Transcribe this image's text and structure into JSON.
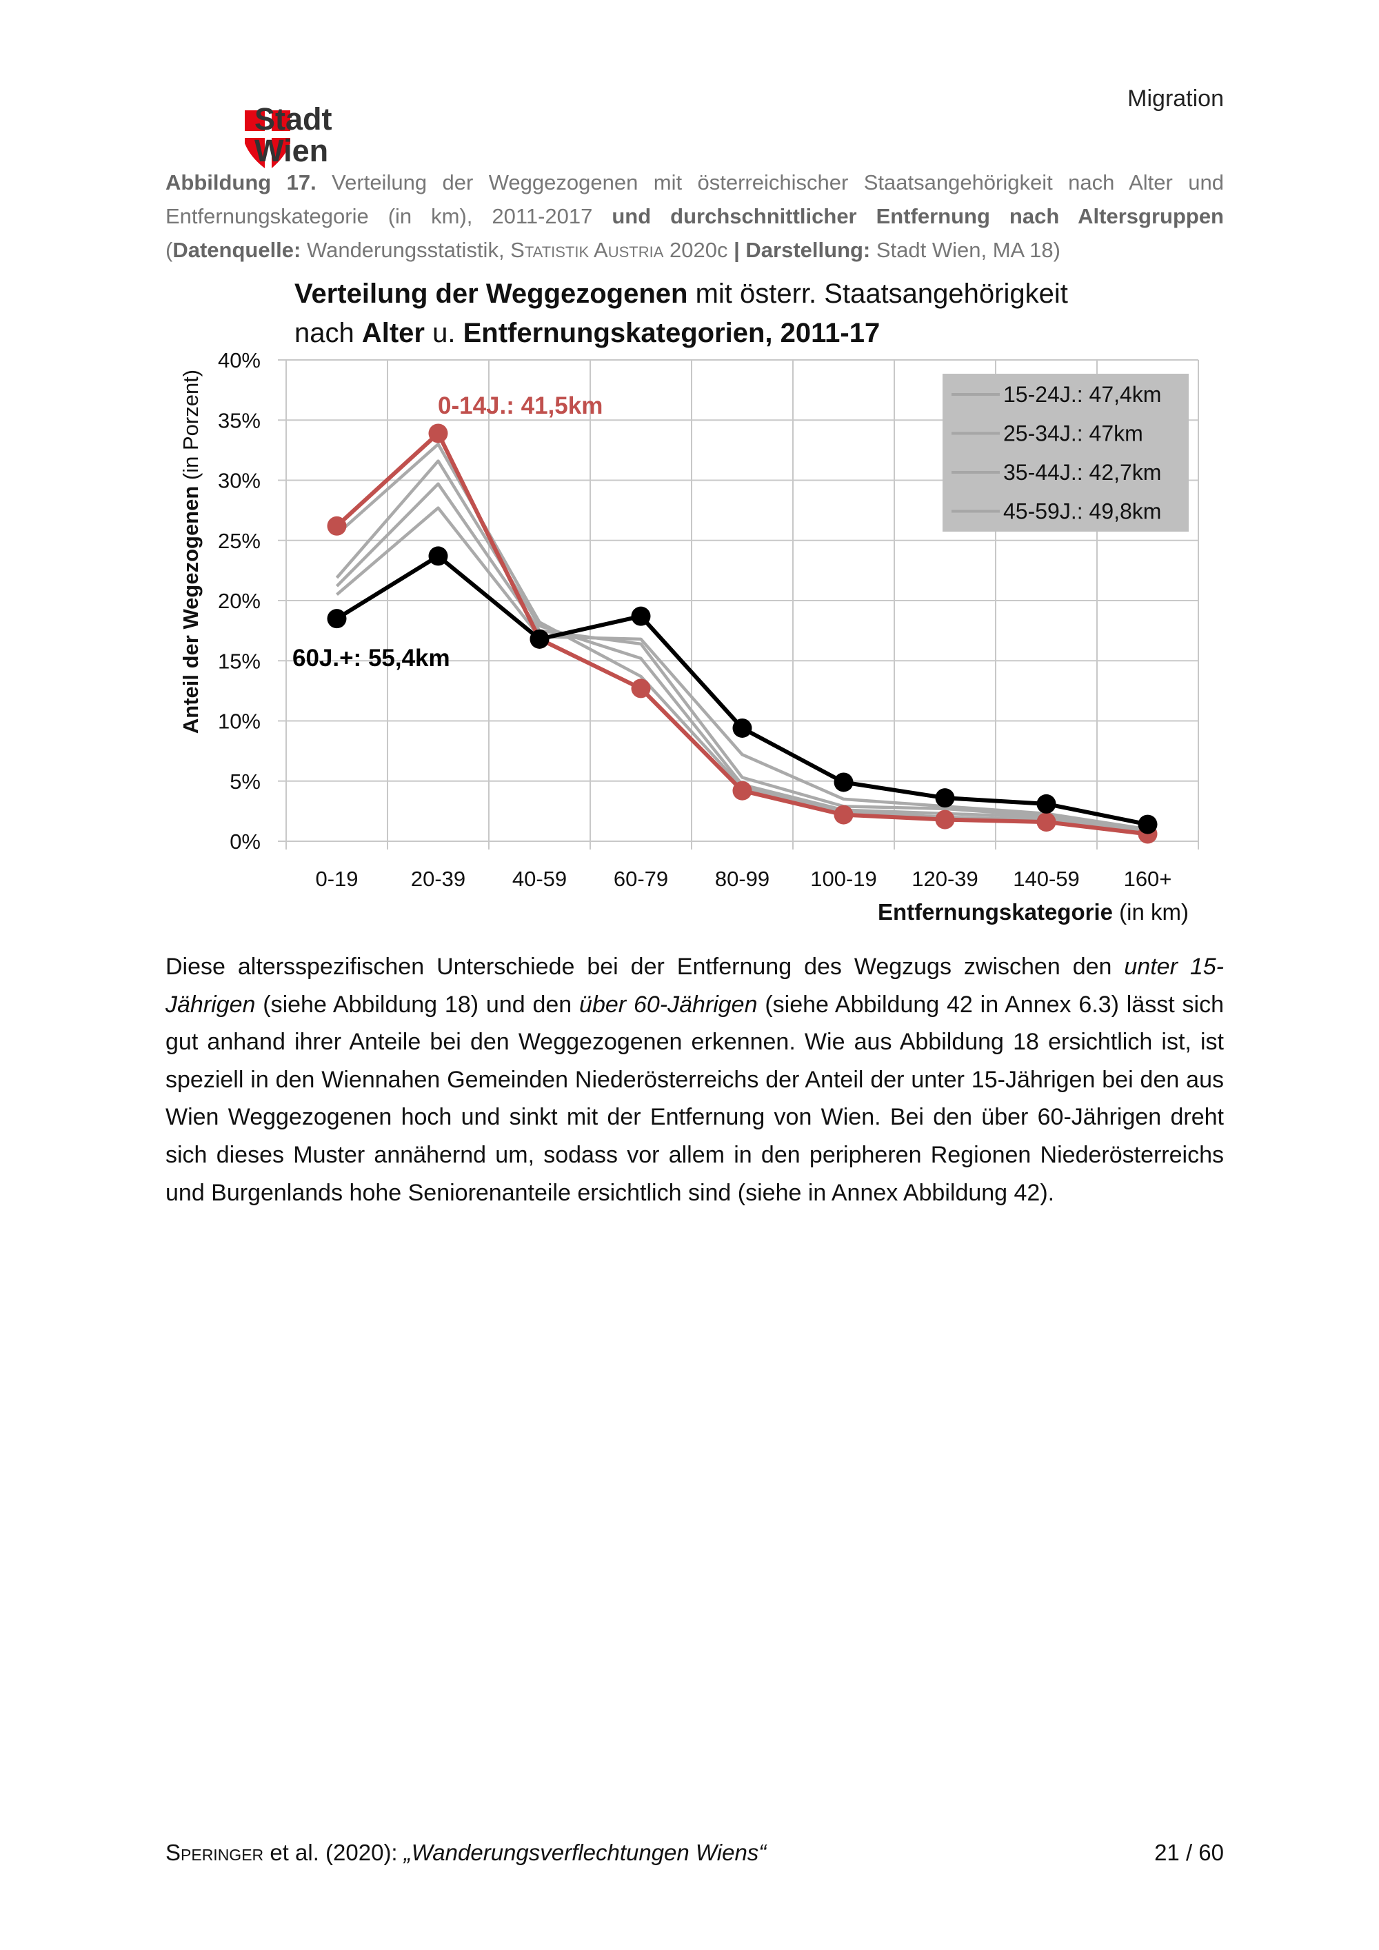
{
  "header": {
    "running_head": "Migration",
    "logo_text": [
      "Stadt",
      "Wien"
    ],
    "logo_color": "#e30613"
  },
  "caption": {
    "label": "Abbildung 17.",
    "text1": " Verteilung der Weggezogenen mit österreichischer Staatsangehörigkeit nach Alter und Entfernungskategorie (in km), 2011-2017 ",
    "bold1": "und durchschnittlicher Entfernung nach Altersgruppen",
    "open": " (",
    "source_label": "Datenquelle:",
    "source_text": " Wanderungsstatistik, ",
    "source_org": "Statistik Austria",
    "source_year": " 2020c ",
    "sep": "| ",
    "design_label": "Darstellung:",
    "design_text": " Stadt Wien, MA 18)"
  },
  "chart_data": {
    "type": "line",
    "title_parts": [
      {
        "text": "Verteilung der Weggezogenen",
        "bold": true
      },
      {
        "text": " mit österr. Staatsangehörigkeit",
        "bold": false
      },
      {
        "text": "nach ",
        "bold": false,
        "newline": true
      },
      {
        "text": "Alter",
        "bold": true
      },
      {
        "text": " u. ",
        "bold": false
      },
      {
        "text": "Entfernungskategorien, 2011-17",
        "bold": true
      }
    ],
    "xlabel_bold": "Entfernungskategorie",
    "xlabel_rest": " (in km)",
    "ylabel_bold": "Anteil der Wegezogenen",
    "ylabel_rest": " (in Porzent)",
    "categories": [
      "0-19",
      "20-39",
      "40-59",
      "60-79",
      "80-99",
      "100-19",
      "120-39",
      "140-59",
      "160+"
    ],
    "ylim": [
      0,
      40
    ],
    "yticks": [
      "0%",
      "5%",
      "10%",
      "15%",
      "20%",
      "25%",
      "30%",
      "35%",
      "40%"
    ],
    "grid": true,
    "legend_placement": "top-right",
    "series": [
      {
        "name": "15-24J.: 47,4km",
        "color": "#aaaaaa",
        "markers": false,
        "in_legend": true,
        "values": [
          21.9,
          31.6,
          17.9,
          15.2,
          4.7,
          2.6,
          2.3,
          2.0,
          0.9
        ]
      },
      {
        "name": "25-34J.: 47km",
        "color": "#aaaaaa",
        "markers": false,
        "in_legend": true,
        "values": [
          21.2,
          29.7,
          17.5,
          16.4,
          5.3,
          2.9,
          2.7,
          2.1,
          1.0
        ]
      },
      {
        "name": "35-44J.: 42,7km",
        "color": "#aaaaaa",
        "markers": false,
        "in_legend": true,
        "values": [
          25.5,
          33.0,
          18.2,
          13.7,
          4.5,
          2.5,
          2.0,
          1.8,
          0.8
        ]
      },
      {
        "name": "45-59J.: 49,8km",
        "color": "#aaaaaa",
        "markers": false,
        "in_legend": true,
        "values": [
          20.5,
          27.7,
          17.0,
          16.8,
          7.2,
          3.5,
          2.9,
          2.3,
          1.0
        ]
      },
      {
        "name": "0-14J.: 41,5km",
        "color": "#c0504d",
        "markers": true,
        "in_legend": false,
        "values": [
          26.2,
          33.9,
          16.8,
          12.7,
          4.2,
          2.2,
          1.8,
          1.6,
          0.6
        ]
      },
      {
        "name": "60J.+: 55,4km",
        "color": "#000000",
        "markers": true,
        "in_legend": false,
        "values": [
          18.5,
          23.7,
          16.8,
          18.7,
          9.4,
          4.9,
          3.6,
          3.1,
          1.4
        ]
      }
    ],
    "legend_bg": "#bfbfbf"
  },
  "body": {
    "segments": [
      {
        "t": "Diese altersspezifischen Unterschiede bei der Entfernung des Wegzugs zwischen den "
      },
      {
        "t": "unter 15-Jährigen",
        "i": true
      },
      {
        "t": " (siehe Abbildung 18) und den "
      },
      {
        "t": "über 60-Jährigen",
        "i": true
      },
      {
        "t": " (siehe Abbildung 42 in Annex 6.3) lässt sich gut anhand ihrer Anteile bei den Weggezogenen erkennen. Wie aus Abbildung 18 ersichtlich ist, ist speziell in den Wiennahen Gemeinden Niederösterreichs der Anteil der unter 15-Jährigen bei den aus Wien Weggezogenen hoch und sinkt mit der Entfernung von Wien. Bei den über 60-Jährigen dreht sich dieses Muster annähernd um, sodass vor allem in den peripheren Regionen Niederösterreichs und Burgenlands hohe Seniorenanteile ersichtlich sind (siehe in Annex Abbildung 42)."
      }
    ]
  },
  "footer": {
    "authors": "Speringer",
    "rest": " et al. (2020): ",
    "title": "„Wanderungsverflechtungen Wiens“",
    "page": "21 / 60"
  }
}
